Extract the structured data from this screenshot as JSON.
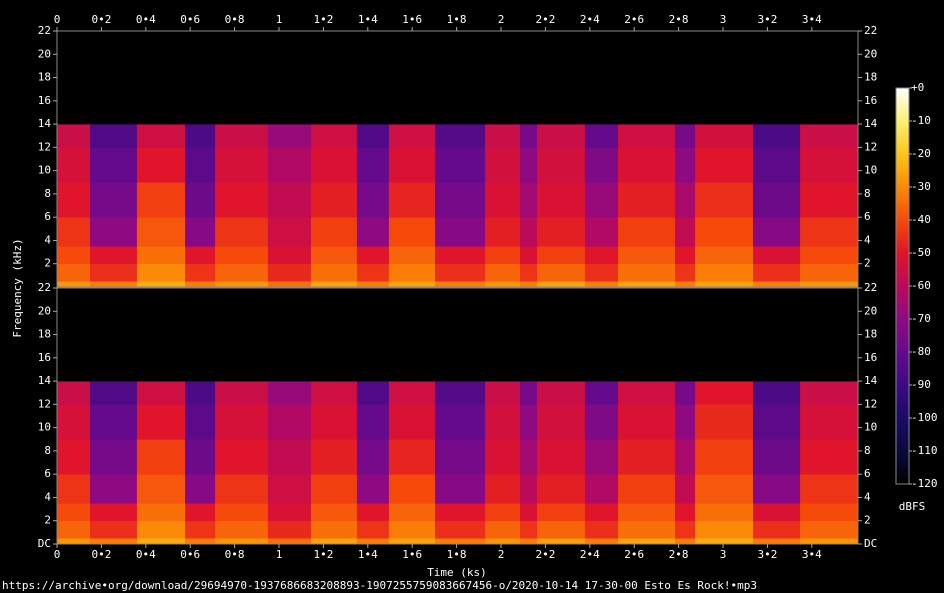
{
  "chart_data": {
    "type": "spectrogram",
    "caption": "https://archive•org/download/29694970-1937686683208893-1907255759083667456-o/2020-10-14 17-30-00 Esto Es Rock!•mp3",
    "x_label": "Time (ks)",
    "y_label": "Frequency (kHz)",
    "colorbar_label": "dBFS",
    "xlim": [
      0,
      3.608
    ],
    "xticks": [
      0,
      {
        "value": 0.2,
        "label": "0•2"
      },
      {
        "value": 0.4,
        "label": "0•4"
      },
      {
        "value": 0.6,
        "label": "0•6"
      },
      {
        "value": 0.8,
        "label": "0•8"
      },
      1,
      {
        "value": 1.2,
        "label": "1•2"
      },
      {
        "value": 1.4,
        "label": "1•4"
      },
      {
        "value": 1.6,
        "label": "1•6"
      },
      {
        "value": 1.8,
        "label": "1•8"
      },
      2,
      {
        "value": 2.2,
        "label": "2•2"
      },
      {
        "value": 2.4,
        "label": "2•4"
      },
      {
        "value": 2.6,
        "label": "2•6"
      },
      {
        "value": 2.8,
        "label": "2•8"
      },
      3,
      {
        "value": 3.2,
        "label": "3•2"
      },
      {
        "value": 3.4,
        "label": "3•4"
      }
    ],
    "ylim": [
      0,
      22
    ],
    "time_edges": [
      0,
      0.149,
      0.36,
      0.577,
      0.712,
      0.95,
      1.144,
      1.351,
      1.495,
      1.703,
      1.928,
      2.086,
      2.162,
      2.378,
      2.527,
      2.784,
      2.874,
      3.135,
      3.347,
      3.608
    ],
    "freq_edges": [
      0,
      0.5,
      2,
      3.5,
      6,
      9,
      12,
      14,
      22
    ],
    "zlim": [
      -120,
      0
    ],
    "zticks": [
      {
        "value": 0,
        "label": "+0"
      },
      -10,
      -20,
      -30,
      -40,
      -50,
      -60,
      -70,
      -80,
      -90,
      -100,
      -110,
      -120
    ],
    "colorscale": [
      "#000000",
      "#0a0a3c",
      "#1c0a66",
      "#3d0a82",
      "#650a8c",
      "#8f0a82",
      "#bb0a5c",
      "#e0142a",
      "#f54a0a",
      "#fb8a08",
      "#fcc518",
      "#fdf070",
      "#ffffff"
    ],
    "channels": [
      {
        "yticks": [
          2,
          4,
          6,
          8,
          10,
          12,
          14,
          16,
          18,
          20,
          22
        ],
        "values": [
          [
            -28,
            -36,
            -40,
            -44,
            -50,
            -53,
            -56,
            -120
          ],
          [
            -32,
            -45,
            -50,
            -70,
            -76,
            -80,
            -85,
            -120
          ],
          [
            -24,
            -30,
            -34,
            -38,
            -42,
            -50,
            -55,
            -120
          ],
          [
            -32,
            -44,
            -50,
            -72,
            -78,
            -82,
            -86,
            -120
          ],
          [
            -28,
            -36,
            -40,
            -44,
            -50,
            -53,
            -56,
            -120
          ],
          [
            -34,
            -46,
            -52,
            -55,
            -58,
            -62,
            -68,
            -120
          ],
          [
            -26,
            -34,
            -38,
            -42,
            -48,
            -52,
            -55,
            -120
          ],
          [
            -32,
            -44,
            -50,
            -70,
            -76,
            -80,
            -85,
            -120
          ],
          [
            -26,
            -32,
            -36,
            -40,
            -47,
            -52,
            -55,
            -120
          ],
          [
            -32,
            -45,
            -50,
            -72,
            -76,
            -80,
            -84,
            -120
          ],
          [
            -28,
            -36,
            -42,
            -48,
            -52,
            -54,
            -56,
            -120
          ],
          [
            -32,
            -44,
            -52,
            -60,
            -66,
            -70,
            -76,
            -120
          ],
          [
            -26,
            -36,
            -42,
            -48,
            -52,
            -54,
            -56,
            -120
          ],
          [
            -32,
            -45,
            -50,
            -62,
            -68,
            -74,
            -80,
            -120
          ],
          [
            -26,
            -34,
            -38,
            -42,
            -48,
            -52,
            -55,
            -120
          ],
          [
            -32,
            -44,
            -50,
            -58,
            -64,
            -70,
            -76,
            -120
          ],
          [
            -26,
            -32,
            -36,
            -40,
            -45,
            -50,
            -54,
            -120
          ],
          [
            -32,
            -45,
            -52,
            -72,
            -78,
            -82,
            -86,
            -120
          ],
          [
            -28,
            -36,
            -40,
            -44,
            -50,
            -53,
            -56,
            -120
          ]
        ]
      },
      {
        "yticks": [
          {
            "value": 0,
            "label": "DC"
          },
          2,
          4,
          6,
          8,
          10,
          12,
          14,
          16,
          18,
          20,
          22
        ],
        "values": [
          [
            -28,
            -36,
            -40,
            -44,
            -50,
            -53,
            -56,
            -120
          ],
          [
            -32,
            -45,
            -50,
            -70,
            -76,
            -80,
            -85,
            -120
          ],
          [
            -24,
            -30,
            -34,
            -38,
            -42,
            -50,
            -55,
            -120
          ],
          [
            -32,
            -44,
            -50,
            -72,
            -78,
            -82,
            -86,
            -120
          ],
          [
            -28,
            -36,
            -40,
            -44,
            -50,
            -53,
            -56,
            -120
          ],
          [
            -34,
            -46,
            -52,
            -55,
            -58,
            -62,
            -68,
            -120
          ],
          [
            -26,
            -34,
            -38,
            -42,
            -48,
            -52,
            -55,
            -120
          ],
          [
            -32,
            -44,
            -50,
            -70,
            -76,
            -80,
            -85,
            -120
          ],
          [
            -26,
            -32,
            -36,
            -40,
            -47,
            -52,
            -55,
            -120
          ],
          [
            -32,
            -45,
            -50,
            -72,
            -76,
            -80,
            -84,
            -120
          ],
          [
            -28,
            -36,
            -42,
            -48,
            -52,
            -54,
            -56,
            -120
          ],
          [
            -32,
            -44,
            -52,
            -60,
            -66,
            -70,
            -76,
            -120
          ],
          [
            -26,
            -36,
            -42,
            -48,
            -52,
            -54,
            -56,
            -120
          ],
          [
            -32,
            -45,
            -50,
            -62,
            -68,
            -74,
            -80,
            -120
          ],
          [
            -26,
            -34,
            -38,
            -42,
            -48,
            -52,
            -55,
            -120
          ],
          [
            -32,
            -44,
            -50,
            -58,
            -64,
            -70,
            -76,
            -120
          ],
          [
            -24,
            -30,
            -34,
            -38,
            -42,
            -46,
            -50,
            -120
          ],
          [
            -32,
            -45,
            -52,
            -72,
            -78,
            -82,
            -86,
            -120
          ],
          [
            -28,
            -36,
            -40,
            -44,
            -50,
            -53,
            -56,
            -120
          ]
        ]
      }
    ]
  }
}
